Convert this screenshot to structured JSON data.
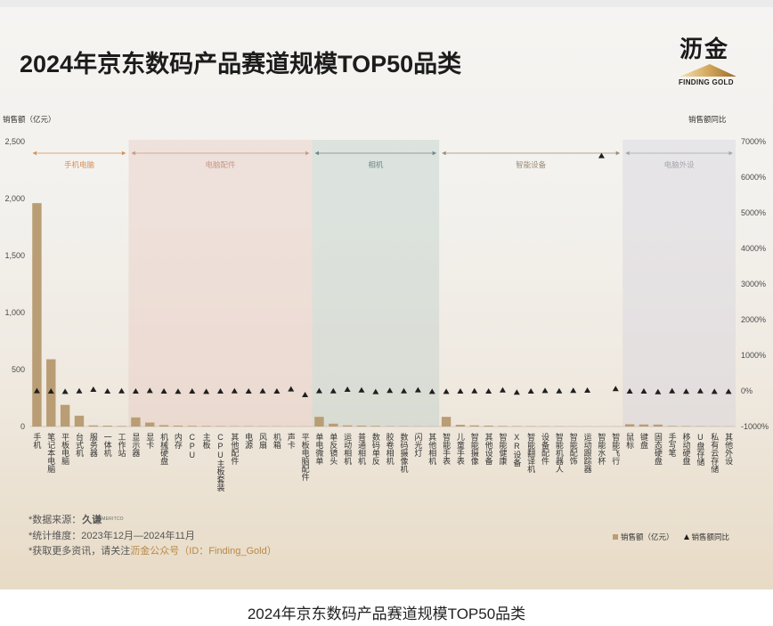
{
  "chart_data": {
    "type": "bar",
    "title": "2024年京东数码产品赛道规模TOP50品类",
    "ylabel": "销售额（亿元）",
    "y2label": "销售额同比",
    "ylim": [
      0,
      2500
    ],
    "y2lim": [
      -1000,
      7000
    ],
    "yticks": [
      0,
      500,
      1000,
      1500,
      2000,
      2500
    ],
    "ytick_labels": [
      "0",
      "500",
      "1,000",
      "1,500",
      "2,000",
      "2,500"
    ],
    "y2ticks": [
      -1000,
      0,
      1000,
      2000,
      3000,
      4000,
      5000,
      6000,
      7000
    ],
    "y2tick_labels": [
      "-1000%",
      "0%",
      "1000%",
      "2000%",
      "3000%",
      "4000%",
      "5000%",
      "6000%",
      "7000%"
    ],
    "grid": false,
    "legend": {
      "position": "bottom-right"
    },
    "groups": [
      {
        "name": "手机电脑",
        "color": "#d4915c",
        "categories": [
          "手机",
          "笔记本电脑",
          "平板电脑",
          "台式机",
          "服务器",
          "一体机",
          "工作站"
        ]
      },
      {
        "name": "电脑配件",
        "color": "#c99a86",
        "band": "#e8c6bc",
        "categories": [
          "显示器",
          "显卡",
          "机械硬盘",
          "内存",
          "CPU",
          "主板",
          "CPU主板套装",
          "其他配件",
          "电源",
          "风扇",
          "机箱",
          "声卡",
          "平板电脑配件"
        ]
      },
      {
        "name": "相机",
        "color": "#6f8888",
        "band": "#b7cac4",
        "categories": [
          "单电微单",
          "单反镜头",
          "运动相机",
          "普通相机",
          "数码单反",
          "胶卷相机",
          "数码摄像机",
          "闪光灯",
          "其他相机"
        ]
      },
      {
        "name": "智能设备",
        "color": "#9c8b79",
        "categories": [
          "智能手表",
          "儿童手表",
          "智能摄像",
          "其他设备",
          "智能健康",
          "XR设备",
          "智能翻译机",
          "设备配件",
          "智能机器人",
          "智能配饰",
          "运动跟踪器",
          "智能水杯",
          "智能飞行"
        ]
      },
      {
        "name": "电脑外设",
        "color": "#a6a5ad",
        "band": "#d3cfde",
        "categories": [
          "鼠标",
          "键盘",
          "固态硬盘",
          "手写笔",
          "移动硬盘",
          "U盘存储",
          "私有云存储",
          "其他外设"
        ]
      }
    ],
    "series": [
      {
        "name": "销售额（亿元）",
        "type": "bar",
        "axis": "left",
        "color": "#b99d74",
        "values": [
          1960,
          590,
          190,
          95,
          10,
          8,
          5,
          80,
          35,
          12,
          8,
          6,
          5,
          4,
          3,
          3,
          2,
          2,
          1,
          1,
          85,
          25,
          10,
          8,
          6,
          3,
          3,
          2,
          1,
          85,
          15,
          10,
          8,
          5,
          4,
          3,
          2,
          2,
          1,
          1,
          1,
          1,
          20,
          18,
          17,
          5,
          4,
          3,
          2,
          1
        ]
      },
      {
        "name": "销售额同比",
        "type": "scatter",
        "marker": "triangle",
        "axis": "right",
        "color": "#1f1f1f",
        "values": [
          0,
          -10,
          -20,
          -5,
          40,
          -10,
          -5,
          -10,
          5,
          -10,
          -15,
          -10,
          -20,
          -10,
          -5,
          -10,
          -5,
          -10,
          50,
          -110,
          0,
          -5,
          40,
          20,
          -25,
          10,
          -5,
          25,
          -20,
          -20,
          -10,
          -5,
          -10,
          20,
          -40,
          -10,
          5,
          -5,
          10,
          15,
          6600,
          60,
          -10,
          -10,
          -30,
          -5,
          -15,
          -5,
          -20,
          -20
        ]
      }
    ]
  },
  "brand": {
    "name": "沥金",
    "tagline": "FINDING GOLD",
    "icon": "gold-mountain-icon"
  },
  "notes": {
    "source_label": "*数据来源：",
    "source_brand": "久谦",
    "source_brand_en": "MERITCO",
    "period": "*统计维度：2023年12月—2024年11月",
    "follow_prefix": "*获取更多资讯，请关注",
    "follow_highlight": "沥金公众号（ID：Finding_Gold）",
    "highlight_color": "#b8894a"
  },
  "caption": "2024年京东数码产品赛道规模TOP50品类"
}
